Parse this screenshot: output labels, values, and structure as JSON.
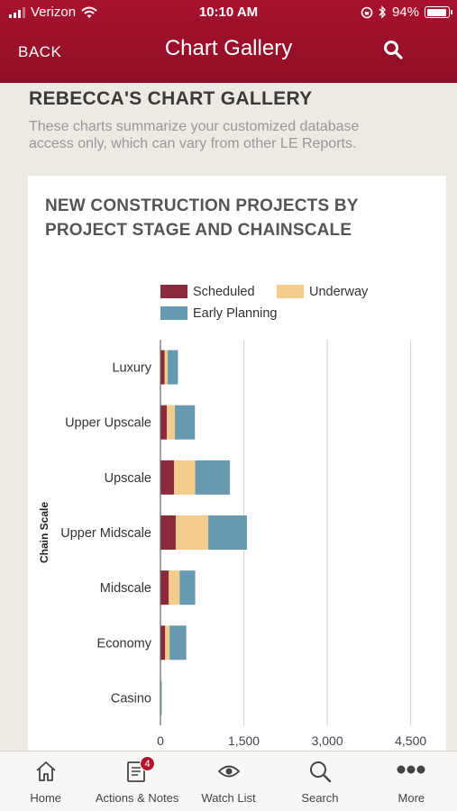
{
  "status": {
    "carrier": "Verizon",
    "time": "10:10 AM",
    "battery": "94%",
    "battery_level": 0.94
  },
  "nav": {
    "back_label": "BACK",
    "title": "Chart Gallery"
  },
  "page": {
    "title": "REBECCA'S CHART GALLERY",
    "subtitle": "These charts summarize your customized database access only, which can vary from other LE Reports."
  },
  "chart_card": {
    "title": "NEW CONSTRUCTION PROJECTS BY PROJECT STAGE AND CHAINSCALE"
  },
  "chart_data": {
    "type": "bar",
    "orientation": "horizontal",
    "stacked": true,
    "categories": [
      "Luxury",
      "Upper Upscale",
      "Upscale",
      "Upper Midscale",
      "Midscale",
      "Economy",
      "Casino"
    ],
    "series": [
      {
        "name": "Scheduled",
        "color": "#8c2a3d",
        "values": [
          75,
          115,
          245,
          275,
          150,
          85,
          5
        ]
      },
      {
        "name": "Underway",
        "color": "#f2cc8a",
        "values": [
          55,
          145,
          380,
          585,
          195,
          80,
          5
        ]
      },
      {
        "name": "Early Planning",
        "color": "#6799b0",
        "values": [
          185,
          360,
          625,
          695,
          280,
          300,
          12
        ]
      }
    ],
    "title": "",
    "xlabel": "",
    "ylabel": "Chain Scale",
    "xlim": [
      0,
      4700
    ],
    "xticks": [
      0,
      1500,
      3000,
      4500
    ],
    "xtick_labels": [
      "0",
      "1,500",
      "3,000",
      "4,500"
    ],
    "grid": true,
    "legend_position": "top"
  },
  "tabs": [
    {
      "label": "Home",
      "icon": "home-icon"
    },
    {
      "label": "Actions & Notes",
      "icon": "notes-icon",
      "badge": "4"
    },
    {
      "label": "Watch List",
      "icon": "eye-icon"
    },
    {
      "label": "Search",
      "icon": "search-icon"
    },
    {
      "label": "More",
      "icon": "more-icon"
    }
  ]
}
